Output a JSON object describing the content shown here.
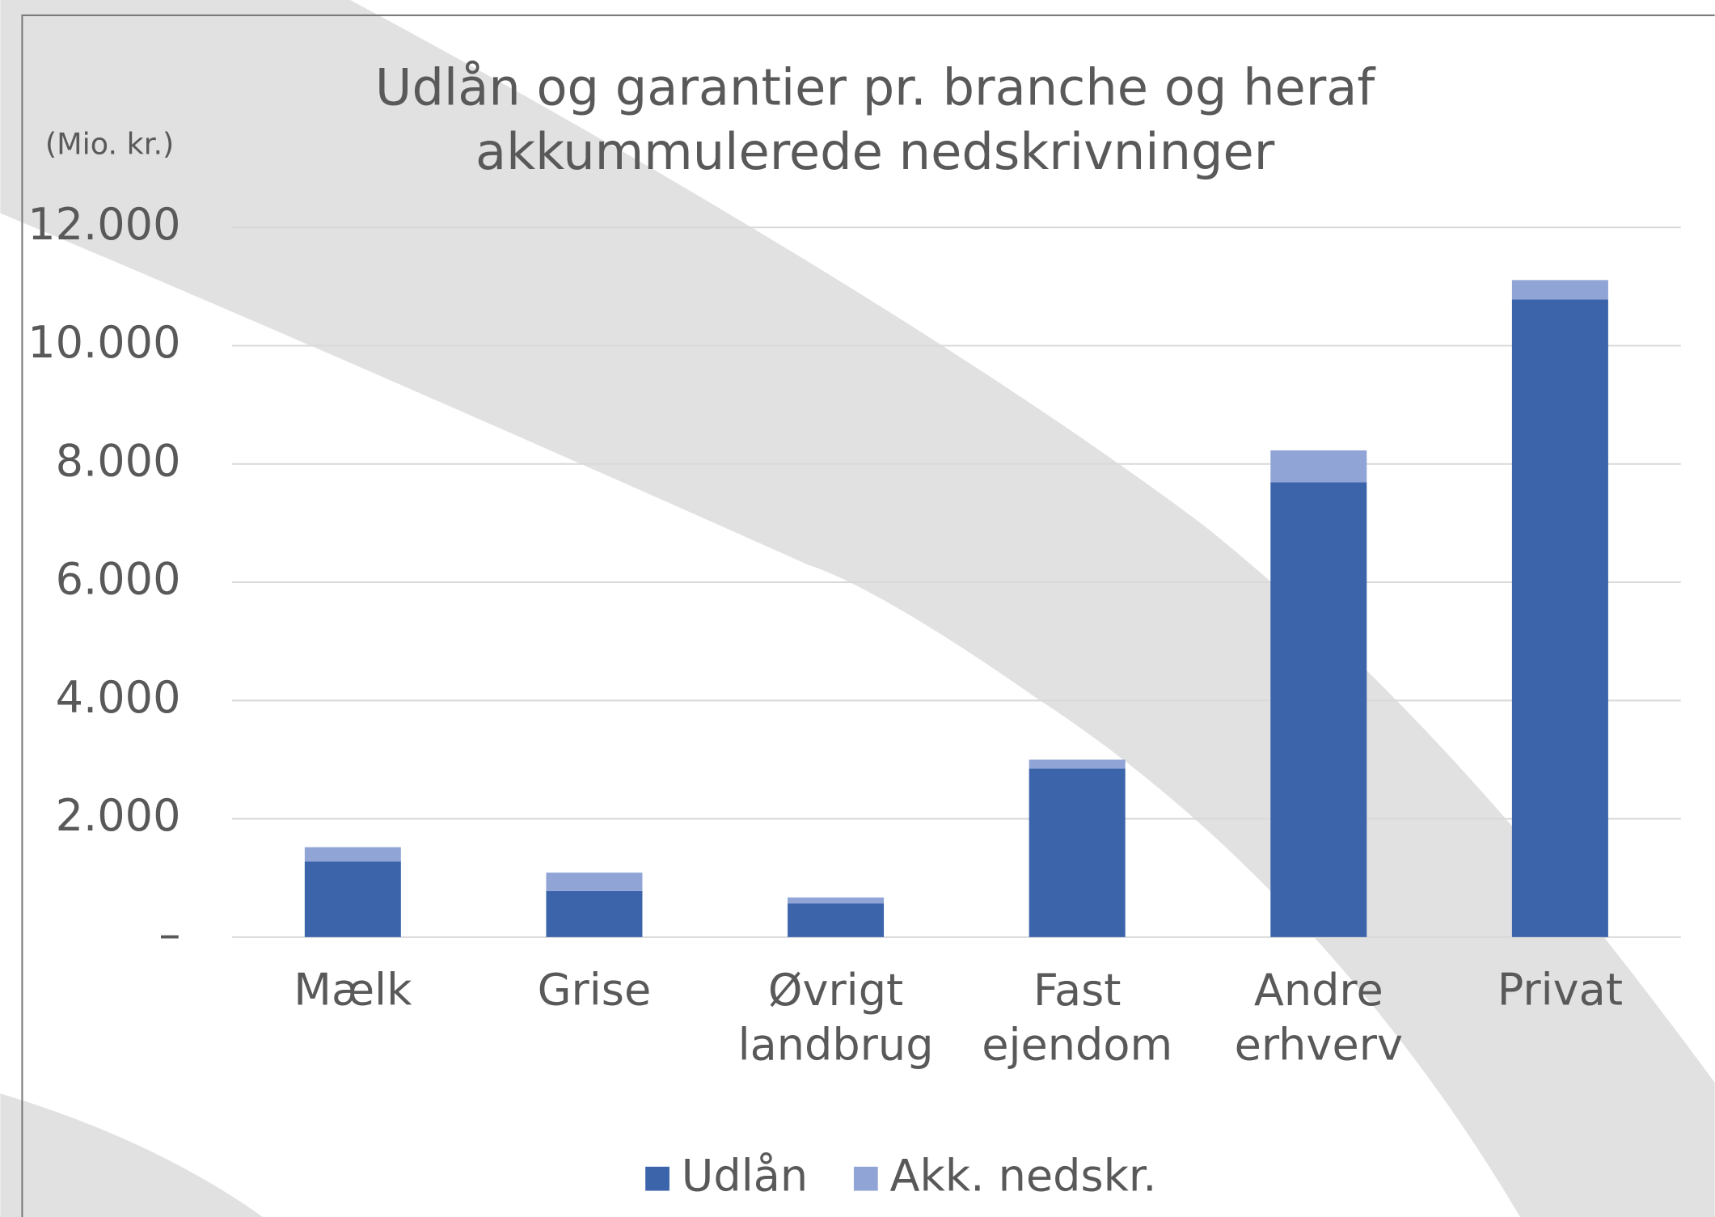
{
  "chart_data": {
    "type": "stacked_bar",
    "title": [
      "Udlån og garantier pr. branche og heraf",
      "akkummulerede nedskrivninger"
    ],
    "y_label": "(Mio. kr.)",
    "categories": [
      "Mælk",
      "Grise",
      "Øvrigt landbrug",
      "Fast ejendom",
      "Andre erhverv",
      "Privat"
    ],
    "series": [
      {
        "name": "Udlån",
        "color": "#3c64ab",
        "values": [
          1280,
          780,
          570,
          2850,
          7690,
          10780
        ]
      },
      {
        "name": "Akk. nedskr.",
        "color": "#90a5d6",
        "values": [
          240,
          310,
          100,
          150,
          540,
          330
        ]
      }
    ],
    "ylim": [
      0,
      12000
    ],
    "yticks": [
      {
        "value": 0,
        "label": "–"
      },
      {
        "value": 2000,
        "label": "2.000"
      },
      {
        "value": 4000,
        "label": "4.000"
      },
      {
        "value": 6000,
        "label": "6.000"
      },
      {
        "value": 8000,
        "label": "8.000"
      },
      {
        "value": 10000,
        "label": "10.000"
      },
      {
        "value": 12000,
        "label": "12.000"
      }
    ],
    "grid": true,
    "legend": "bottom"
  }
}
